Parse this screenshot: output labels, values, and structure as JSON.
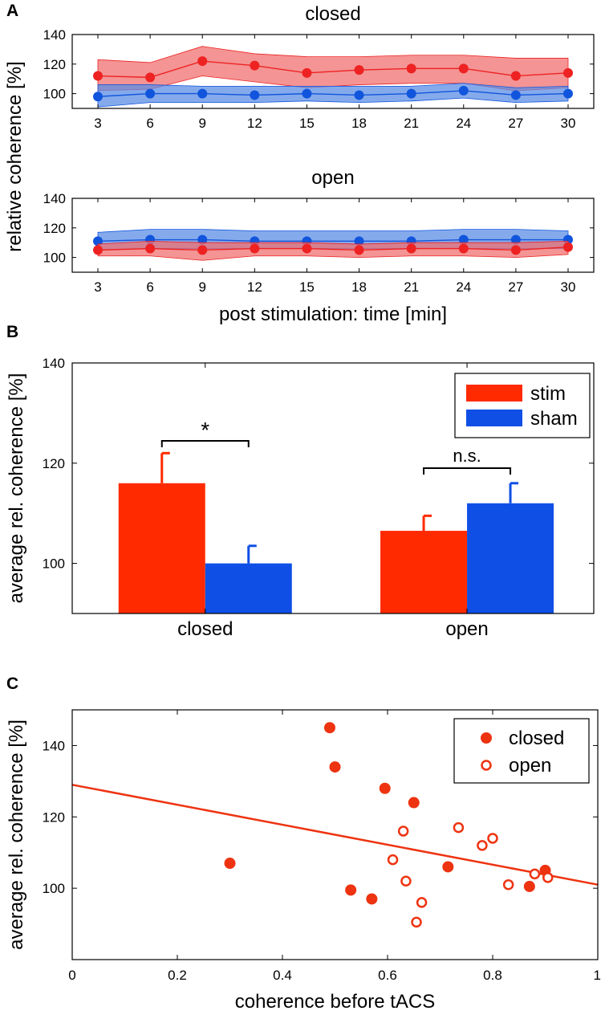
{
  "panels": {
    "A_letter": "A",
    "B_letter": "B",
    "C_letter": "C"
  },
  "chart_data": [
    {
      "id": "A_closed",
      "type": "line",
      "title": "closed",
      "x": [
        3,
        6,
        9,
        12,
        15,
        18,
        21,
        24,
        27,
        30
      ],
      "x_tick_labels": [
        "3",
        "6",
        "9",
        "12",
        "15",
        "18",
        "21",
        "24",
        "27",
        "30"
      ],
      "ylim": [
        90,
        140
      ],
      "y_ticks": [
        100,
        120,
        140
      ],
      "y_tick_labels": [
        "100",
        "120",
        "140"
      ],
      "series": [
        {
          "name": "stim",
          "color": "#ee2222",
          "band_color": "#f07070",
          "values": [
            112,
            111,
            122,
            119,
            114,
            116,
            117,
            117,
            112,
            114
          ],
          "lower": [
            102,
            103,
            112,
            108,
            104,
            106,
            107,
            107,
            102,
            104
          ],
          "upper": [
            123,
            121,
            132,
            127,
            125,
            125,
            126,
            126,
            124,
            124
          ]
        },
        {
          "name": "sham",
          "color": "#1155dd",
          "band_color": "#5c8ee6",
          "values": [
            98,
            100,
            100,
            99,
            100,
            99,
            100,
            102,
            99,
            100
          ],
          "lower": [
            91,
            94,
            94,
            94,
            95,
            94,
            95,
            97,
            94,
            95
          ],
          "upper": [
            106,
            106,
            105,
            105,
            105,
            105,
            105,
            107,
            104,
            105
          ]
        }
      ]
    },
    {
      "id": "A_open",
      "type": "line",
      "title": "open",
      "x": [
        3,
        6,
        9,
        12,
        15,
        18,
        21,
        24,
        27,
        30
      ],
      "x_tick_labels": [
        "3",
        "6",
        "9",
        "12",
        "15",
        "18",
        "21",
        "24",
        "27",
        "30"
      ],
      "xlabel": "post stimulation: time [min]",
      "ylim": [
        90,
        140
      ],
      "y_ticks": [
        100,
        120,
        140
      ],
      "y_tick_labels": [
        "100",
        "120",
        "140"
      ],
      "series": [
        {
          "name": "sham",
          "color": "#1155dd",
          "band_color": "#5c8ee6",
          "values": [
            111,
            112,
            112,
            111,
            111,
            111,
            111,
            112,
            112,
            112
          ],
          "lower": [
            105,
            106,
            106,
            106,
            106,
            106,
            106,
            106,
            106,
            106
          ],
          "upper": [
            117,
            119,
            119,
            118,
            118,
            118,
            118,
            119,
            119,
            118
          ]
        },
        {
          "name": "stim",
          "color": "#ee2222",
          "band_color": "#f07070",
          "values": [
            105,
            106,
            105,
            106,
            106,
            105,
            106,
            106,
            105,
            107
          ],
          "lower": [
            101,
            101,
            98,
            101,
            101,
            100,
            101,
            101,
            100,
            102
          ],
          "upper": [
            109,
            111,
            110,
            110,
            110,
            109,
            110,
            110,
            110,
            111
          ]
        }
      ]
    },
    {
      "id": "B",
      "type": "bar",
      "categories": [
        "closed",
        "open"
      ],
      "ylabel": "average rel. coherence [%]",
      "ylim": [
        90,
        140
      ],
      "y_ticks": [
        100,
        120,
        140
      ],
      "y_tick_labels": [
        "100",
        "120",
        "140"
      ],
      "series": [
        {
          "name": "stim",
          "color": "#ff2a00",
          "values": [
            116,
            106.5
          ],
          "errors": [
            6,
            3
          ]
        },
        {
          "name": "sham",
          "color": "#0f4fe6",
          "values": [
            100,
            112
          ],
          "errors": [
            3.5,
            4
          ]
        }
      ],
      "legend": {
        "placement": "top-right",
        "entries": [
          "stim",
          "sham"
        ]
      },
      "annotations": {
        "closed": "*",
        "open": "n.s."
      }
    },
    {
      "id": "C",
      "type": "scatter",
      "xlabel": "coherence before tACS",
      "ylabel": "average rel. coherence [%]",
      "xlim": [
        0,
        1
      ],
      "ylim": [
        80,
        150
      ],
      "x_ticks": [
        0,
        0.2,
        0.4,
        0.6,
        0.8,
        1
      ],
      "x_tick_labels": [
        "0",
        "0.2",
        "0.4",
        "0.6",
        "0.8",
        "1"
      ],
      "y_ticks": [
        100,
        120,
        140
      ],
      "y_tick_labels": [
        "100",
        "120",
        "140"
      ],
      "color": "#ee3311",
      "series": [
        {
          "name": "closed",
          "filled": true,
          "points": [
            [
              0.3,
              107
            ],
            [
              0.49,
              145
            ],
            [
              0.5,
              134
            ],
            [
              0.53,
              99.5
            ],
            [
              0.57,
              97
            ],
            [
              0.595,
              128
            ],
            [
              0.65,
              124
            ],
            [
              0.715,
              106
            ],
            [
              0.87,
              100.5
            ],
            [
              0.9,
              105
            ]
          ]
        },
        {
          "name": "open",
          "filled": false,
          "points": [
            [
              0.61,
              108
            ],
            [
              0.63,
              116
            ],
            [
              0.635,
              102
            ],
            [
              0.655,
              90.5
            ],
            [
              0.665,
              96
            ],
            [
              0.735,
              117
            ],
            [
              0.78,
              112
            ],
            [
              0.8,
              114
            ],
            [
              0.83,
              101
            ],
            [
              0.88,
              104
            ],
            [
              0.905,
              103
            ]
          ]
        }
      ],
      "fit_line": {
        "x": [
          0,
          1
        ],
        "y": [
          129,
          101
        ]
      },
      "legend": {
        "placement": "top-right",
        "entries": [
          "closed",
          "open"
        ]
      }
    }
  ]
}
